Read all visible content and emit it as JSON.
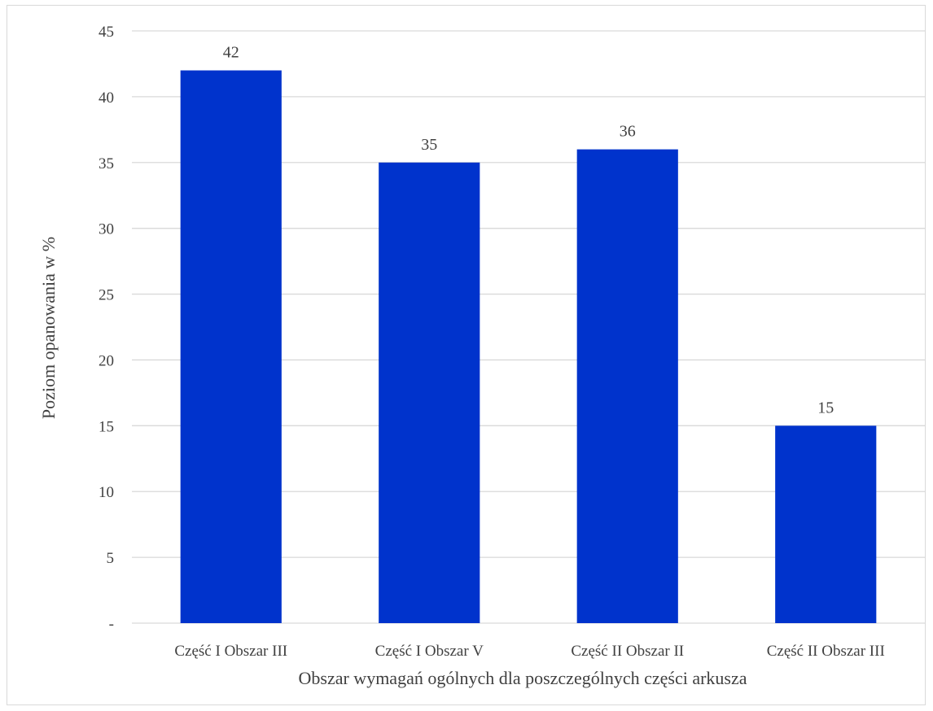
{
  "chart_data": {
    "type": "bar",
    "categories": [
      "Część I Obszar III",
      "Część I Obszar V",
      "Część II Obszar II",
      "Część II Obszar III"
    ],
    "values": [
      42,
      35,
      36,
      15
    ],
    "data_labels": [
      "42",
      "35",
      "36",
      "15"
    ],
    "title": "",
    "xlabel": "Obszar wymagań ogólnych dla poszczególnych części arkusza",
    "ylabel": "Poziom opanowania w %",
    "ylim": [
      0,
      45
    ],
    "yticks": [
      0,
      5,
      10,
      15,
      20,
      25,
      30,
      35,
      40,
      45
    ],
    "ytick_labels": [
      "-",
      "5",
      "10",
      "15",
      "20",
      "25",
      "30",
      "35",
      "40",
      "45"
    ],
    "grid": true,
    "legend": "none",
    "colors": {
      "bar": "#0033cc",
      "grid": "#d9d9d9",
      "text": "#404040"
    }
  }
}
